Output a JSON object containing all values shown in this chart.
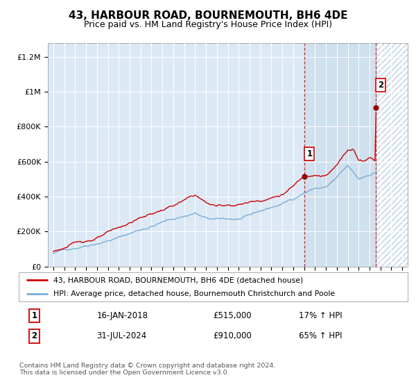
{
  "title": "43, HARBOUR ROAD, BOURNEMOUTH, BH6 4DE",
  "subtitle": "Price paid vs. HM Land Registry's House Price Index (HPI)",
  "title_fontsize": 11,
  "subtitle_fontsize": 9,
  "background_color": "#ffffff",
  "plot_bg_color": "#dce9f5",
  "ylabel_ticks": [
    "£0",
    "£200K",
    "£400K",
    "£600K",
    "£800K",
    "£1M",
    "£1.2M"
  ],
  "ytick_values": [
    0,
    200000,
    400000,
    600000,
    800000,
    1000000,
    1200000
  ],
  "ylim": [
    0,
    1280000
  ],
  "xstart_year": 1995,
  "xend_year": 2027,
  "sale1_date_label": "16-JAN-2018",
  "sale1_price": 515000,
  "sale1_hpi_pct": "17%",
  "sale2_date_label": "31-JUL-2024",
  "sale2_price": 910000,
  "sale2_hpi_pct": "65%",
  "sale1_year": 2018.04,
  "sale2_year": 2024.58,
  "red_line_color": "#cc0000",
  "blue_line_color": "#7aadd4",
  "sale_dot_color": "#990000",
  "vline_color": "#cc0000",
  "footer_text": "Contains HM Land Registry data © Crown copyright and database right 2024.\nThis data is licensed under the Open Government Licence v3.0.",
  "legend_label1": "43, HARBOUR ROAD, BOURNEMOUTH, BH6 4DE (detached house)",
  "legend_label2": "HPI: Average price, detached house, Bournemouth Christchurch and Poole",
  "blue_base_points_x": [
    1995,
    1997,
    1999,
    2001,
    2003,
    2005,
    2007,
    2008,
    2009,
    2010,
    2011,
    2012,
    2013,
    2014,
    2015,
    2016,
    2017,
    2018,
    2019,
    2020,
    2021,
    2022,
    2023,
    2024,
    2024.7
  ],
  "blue_base_points_y": [
    75000,
    110000,
    150000,
    185000,
    230000,
    275000,
    310000,
    330000,
    295000,
    285000,
    285000,
    285000,
    295000,
    320000,
    340000,
    360000,
    390000,
    430000,
    455000,
    460000,
    510000,
    570000,
    490000,
    520000,
    540000
  ],
  "red_base_points_x": [
    1995,
    1997,
    1999,
    2001,
    2003,
    2005,
    2007,
    2008,
    2009,
    2010,
    2011,
    2012,
    2013,
    2014,
    2015,
    2016,
    2017,
    2018,
    2019,
    2020,
    2021,
    2022,
    2022.5,
    2023,
    2023.5,
    2024,
    2024.5,
    2024.6
  ],
  "red_base_points_y": [
    85000,
    130000,
    165000,
    210000,
    270000,
    315000,
    365000,
    395000,
    350000,
    330000,
    340000,
    345000,
    360000,
    375000,
    395000,
    415000,
    460000,
    515000,
    540000,
    535000,
    590000,
    680000,
    690000,
    625000,
    620000,
    645000,
    630000,
    910000
  ]
}
